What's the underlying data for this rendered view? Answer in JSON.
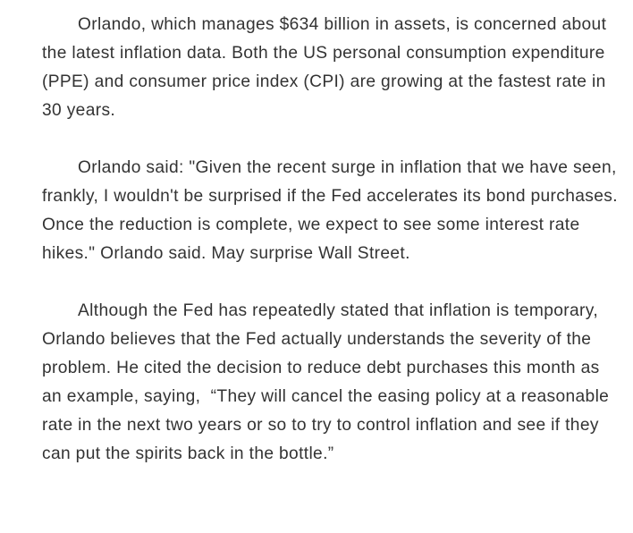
{
  "article": {
    "paragraphs": [
      "Orlando, which manages $634 billion in assets, is concerned about the latest inflation data. Both the US personal consumption expenditure (PPE) and consumer price index (CPI) are growing at the fastest rate in 30 years.",
      "Orlando said: \"Given the recent surge in inflation that we have seen, frankly, I wouldn't be surprised if the Fed accelerates its bond purchases. Once the reduction is complete, we expect to see some interest rate hikes.\" Orlando said. May surprise Wall Street.",
      "Although the Fed has repeatedly stated that inflation is temporary, Orlando believes that the Fed actually understands the severity of the problem. He cited the decision to reduce debt purchases this month as an example, saying,  “They will cancel the easing policy at a reasonable rate in the next two years or so to try to control inflation and see if they can put the spirits back in the bottle.”"
    ]
  }
}
